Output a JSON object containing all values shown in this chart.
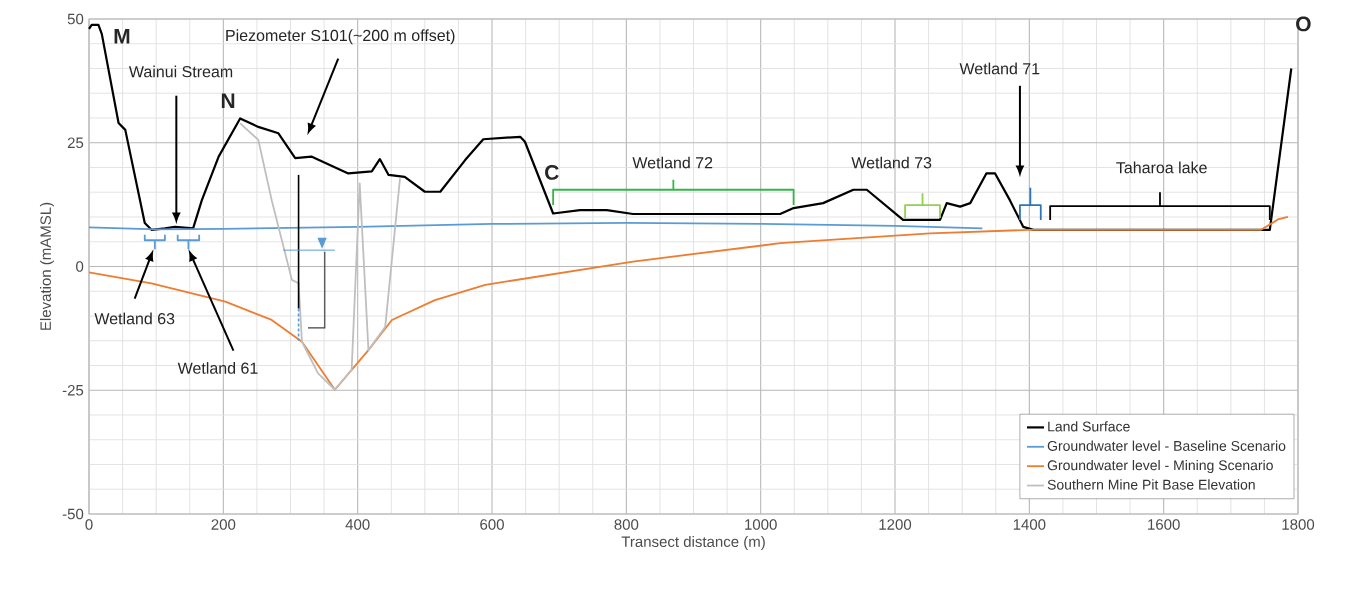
{
  "chart_data": {
    "type": "line",
    "xlabel": "Transect distance (m)",
    "ylabel": "Elevation  (mAMSL)",
    "xlim": [
      0,
      1800
    ],
    "xticks": [
      0,
      200,
      400,
      600,
      800,
      1000,
      1200,
      1400,
      1600,
      1800
    ],
    "ylim": [
      -50,
      50
    ],
    "yticks": [
      -50,
      -25,
      0,
      25,
      50
    ],
    "grid": true,
    "legend": "bottom right",
    "series": [
      {
        "name": "Land Surface",
        "color": "#000000",
        "x": [
          0,
          4,
          14,
          19,
          44,
          54,
          83,
          93,
          113,
          128,
          155,
          168,
          193,
          225,
          252,
          282,
          307,
          331,
          386,
          421,
          433,
          446,
          470,
          500,
          523,
          560,
          587,
          642,
          649,
          691,
          731,
          771,
          810,
          1029,
          1049,
          1093,
          1138,
          1158,
          1212,
          1267,
          1277,
          1297,
          1312,
          1336,
          1349,
          1371,
          1391,
          1406,
          1758,
          1790
        ],
        "values": [
          48,
          48.8,
          48.8,
          47,
          29,
          27.6,
          8.8,
          7.4,
          7.7,
          8,
          7.7,
          13.4,
          22.2,
          29.9,
          28.2,
          26.9,
          21.9,
          22.2,
          18.8,
          19.2,
          21.7,
          18.5,
          18.1,
          15.1,
          15.1,
          21.5,
          25.7,
          26.2,
          25.2,
          10.7,
          11.4,
          11.4,
          10.6,
          10.6,
          11.8,
          12.8,
          15.5,
          15.5,
          9.4,
          9.4,
          12.8,
          12.1,
          12.8,
          18.8,
          18.8,
          13.4,
          8,
          7.4,
          7.4,
          40
        ]
      },
      {
        "name": "Groundwater level - Baseline Scenario",
        "color": "#5b9bd5",
        "x": [
          0,
          100,
          200,
          400,
          600,
          800,
          1000,
          1200,
          1330
        ],
        "values": [
          7.9,
          7.5,
          7.6,
          8,
          8.6,
          8.8,
          8.6,
          8.2,
          7.7
        ]
      },
      {
        "name": "Groundwater level - Mining Scenario",
        "color": "#ed7d31",
        "x": [
          0,
          93,
          203,
          272,
          317,
          366,
          416,
          451,
          515,
          590,
          810,
          1029,
          1252,
          1400,
          1745,
          1770,
          1785
        ],
        "values": [
          -1.2,
          -3.4,
          -7.1,
          -10.8,
          -15.2,
          -24.9,
          -16.9,
          -10.8,
          -6.8,
          -3.7,
          1,
          4.7,
          6.7,
          7.4,
          7.4,
          9.5,
          10
        ]
      },
      {
        "name": "Southern Mine Pit Base Elevation",
        "color": "#bfbfbf",
        "x": [
          225,
          252,
          272,
          292,
          302,
          312,
          317,
          341,
          366,
          391,
          403,
          416,
          441,
          463
        ],
        "values": [
          28.9,
          25.6,
          13.4,
          2.7,
          -2.7,
          -3.4,
          -15.2,
          -21.6,
          -24.9,
          -20.9,
          16.8,
          -16.9,
          -12.2,
          17.8
        ]
      }
    ],
    "annotations": [
      "M",
      "N",
      {
        "text": "C",
        "x": 691,
        "y": 10.7
      },
      "O",
      "Wainui Stream",
      "Piezometer S101(~200 m offset)",
      "Wetland 63",
      "Wetland 61",
      {
        "text": "Wetland 72",
        "x": 870,
        "y": 10.6
      },
      "Wetland 73",
      "Wetland 71",
      "Taharoa lake"
    ]
  }
}
